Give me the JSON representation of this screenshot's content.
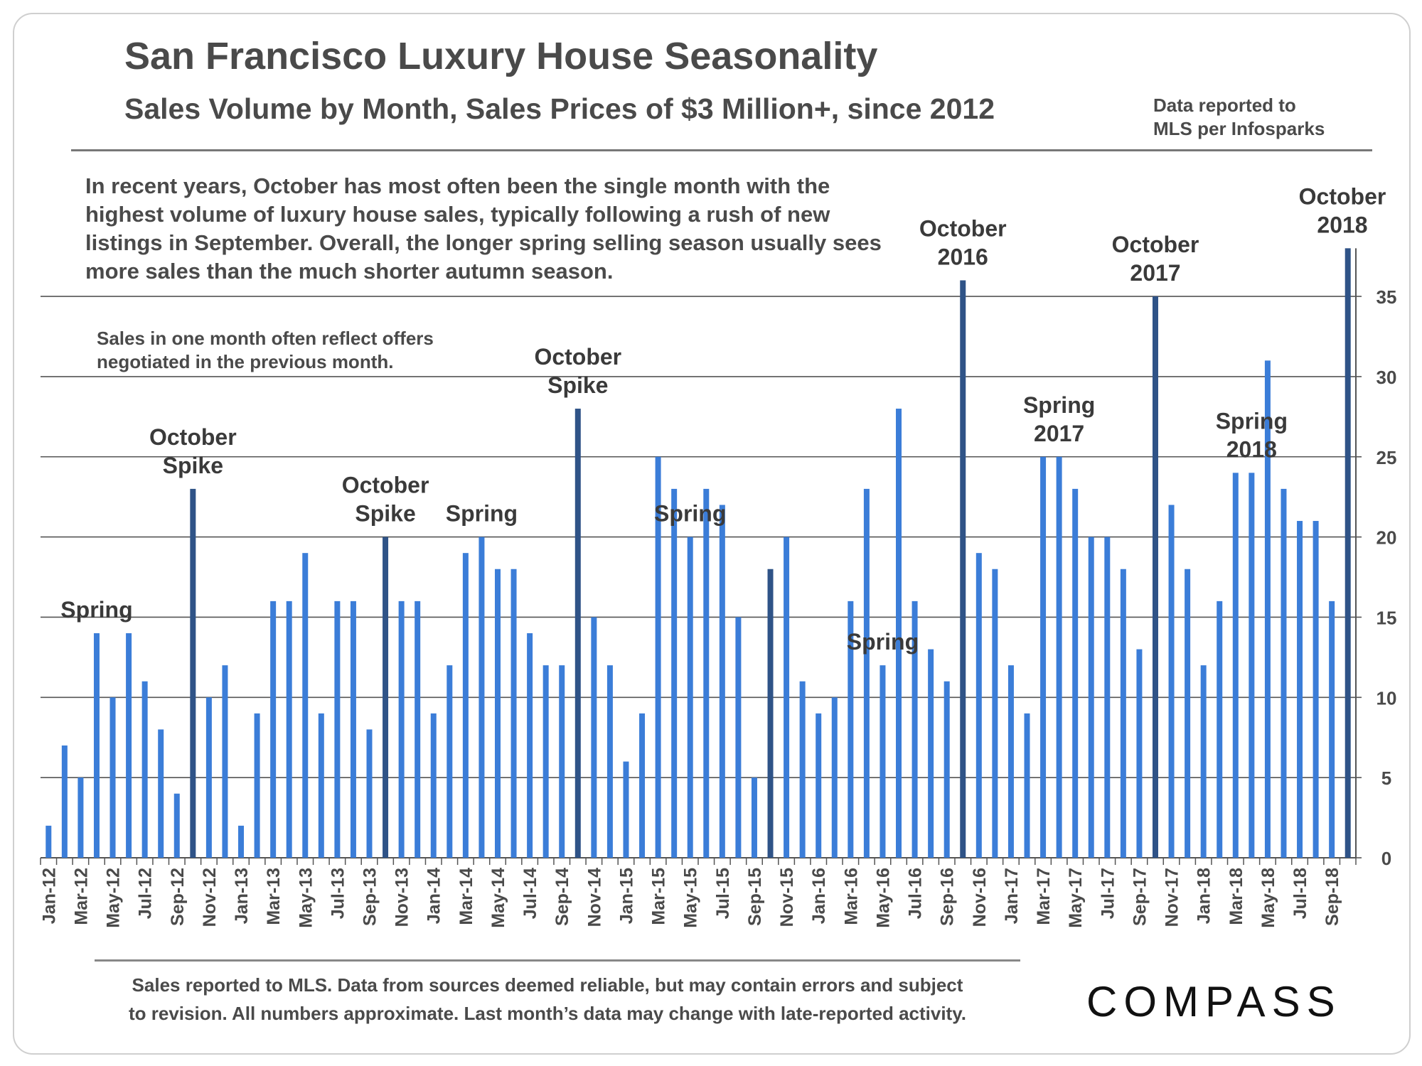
{
  "title": "San Francisco Luxury House Seasonality",
  "subtitle": "Sales Volume by Month, Sales Prices of $3 Million+, since 2012",
  "source_line1": "Data reported to",
  "source_line2": "MLS per Infosparks",
  "paragraph": "In recent years, October has most often been the single month with the highest volume of luxury house sales, typically following a rush of new listings in September. Overall, the longer spring selling season usually sees more sales than the much shorter autumn season.",
  "subnote": "Sales in one month often reflect offers negotiated in the previous month.",
  "footnote_line1": "Sales reported to MLS. Data from sources deemed reliable, but may contain errors and subject",
  "footnote_line2": "to revision. All numbers approximate. Last month’s data may change with late-reported activity.",
  "logo": "COMPASS",
  "colors": {
    "bar": "#3b7dd8",
    "bar_highlight": "#2f5387",
    "grid": "#555555",
    "text": "#4a4a4a"
  },
  "chart_data": {
    "type": "bar",
    "title": "San Francisco Luxury House Seasonality",
    "xlabel": "",
    "ylabel": "",
    "ylim": [
      0,
      38
    ],
    "yticks": [
      0,
      5,
      10,
      15,
      20,
      25,
      30,
      35
    ],
    "y_axis_side": "right",
    "grid": true,
    "categories": [
      "Jan-12",
      "Feb-12",
      "Mar-12",
      "Apr-12",
      "May-12",
      "Jun-12",
      "Jul-12",
      "Aug-12",
      "Sep-12",
      "Oct-12",
      "Nov-12",
      "Dec-12",
      "Jan-13",
      "Feb-13",
      "Mar-13",
      "Apr-13",
      "May-13",
      "Jun-13",
      "Jul-13",
      "Aug-13",
      "Sep-13",
      "Oct-13",
      "Nov-13",
      "Dec-13",
      "Jan-14",
      "Feb-14",
      "Mar-14",
      "Apr-14",
      "May-14",
      "Jun-14",
      "Jul-14",
      "Aug-14",
      "Sep-14",
      "Oct-14",
      "Nov-14",
      "Dec-14",
      "Jan-15",
      "Feb-15",
      "Mar-15",
      "Apr-15",
      "May-15",
      "Jun-15",
      "Jul-15",
      "Aug-15",
      "Sep-15",
      "Oct-15",
      "Nov-15",
      "Dec-15",
      "Jan-16",
      "Feb-16",
      "Mar-16",
      "Apr-16",
      "May-16",
      "Jun-16",
      "Jul-16",
      "Aug-16",
      "Sep-16",
      "Oct-16",
      "Nov-16",
      "Dec-16",
      "Jan-17",
      "Feb-17",
      "Mar-17",
      "Apr-17",
      "May-17",
      "Jun-17",
      "Jul-17",
      "Aug-17",
      "Sep-17",
      "Oct-17",
      "Nov-17",
      "Dec-17",
      "Jan-18",
      "Feb-18",
      "Mar-18",
      "Apr-18",
      "May-18",
      "Jun-18",
      "Jul-18",
      "Aug-18",
      "Sep-18",
      "Oct-18"
    ],
    "values": [
      2,
      7,
      5,
      14,
      10,
      14,
      11,
      8,
      4,
      23,
      10,
      12,
      2,
      9,
      16,
      16,
      19,
      9,
      16,
      16,
      8,
      20,
      16,
      16,
      9,
      12,
      19,
      20,
      18,
      18,
      14,
      12,
      12,
      28,
      15,
      12,
      6,
      9,
      25,
      23,
      20,
      23,
      22,
      15,
      5,
      18,
      20,
      11,
      9,
      10,
      16,
      23,
      12,
      28,
      16,
      13,
      11,
      36,
      19,
      18,
      12,
      9,
      25,
      25,
      23,
      20,
      20,
      18,
      13,
      35,
      22,
      18,
      12,
      16,
      24,
      24,
      31,
      23,
      21,
      21,
      16,
      38
    ],
    "highlight_categories": [
      "Oct-12",
      "Oct-13",
      "Oct-14",
      "Oct-15",
      "Oct-16",
      "Oct-17",
      "Oct-18"
    ],
    "visible_tick_labels": [
      "Jan-12",
      "Mar-12",
      "May-12",
      "Jul-12",
      "Sep-12",
      "Nov-12",
      "Jan-13",
      "Mar-13",
      "May-13",
      "Jul-13",
      "Sep-13",
      "Nov-13",
      "Jan-14",
      "Mar-14",
      "May-14",
      "Jul-14",
      "Sep-14",
      "Nov-14",
      "Jan-15",
      "Mar-15",
      "May-15",
      "Jul-15",
      "Sep-15",
      "Nov-15",
      "Jan-16",
      "Mar-16",
      "May-16",
      "Jul-16",
      "Sep-16",
      "Nov-16",
      "Jan-17",
      "Mar-17",
      "May-17",
      "Jul-17",
      "Sep-17",
      "Nov-17",
      "Jan-18",
      "Mar-18",
      "May-18",
      "Jul-18",
      "Sep-18"
    ],
    "annotations": [
      {
        "lines": [
          "Spring"
        ],
        "category": "Apr-12"
      },
      {
        "lines": [
          "October",
          "Spike"
        ],
        "category": "Oct-12"
      },
      {
        "lines": [
          "October",
          "Spike"
        ],
        "category": "Oct-13"
      },
      {
        "lines": [
          "Spring"
        ],
        "category": "Apr-14"
      },
      {
        "lines": [
          "October",
          "Spike"
        ],
        "category": "Oct-14"
      },
      {
        "lines": [
          "Spring"
        ],
        "category": "May-15"
      },
      {
        "lines": [
          "Spring"
        ],
        "category": "May-16"
      },
      {
        "lines": [
          "October",
          "2016"
        ],
        "category": "Oct-16"
      },
      {
        "lines": [
          "Spring",
          "2017"
        ],
        "category": "Apr-17"
      },
      {
        "lines": [
          "October",
          "2017"
        ],
        "category": "Oct-17"
      },
      {
        "lines": [
          "Spring",
          "2018"
        ],
        "category": "Apr-18"
      },
      {
        "lines": [
          "October",
          "2018"
        ],
        "category": "Oct-18"
      }
    ]
  }
}
